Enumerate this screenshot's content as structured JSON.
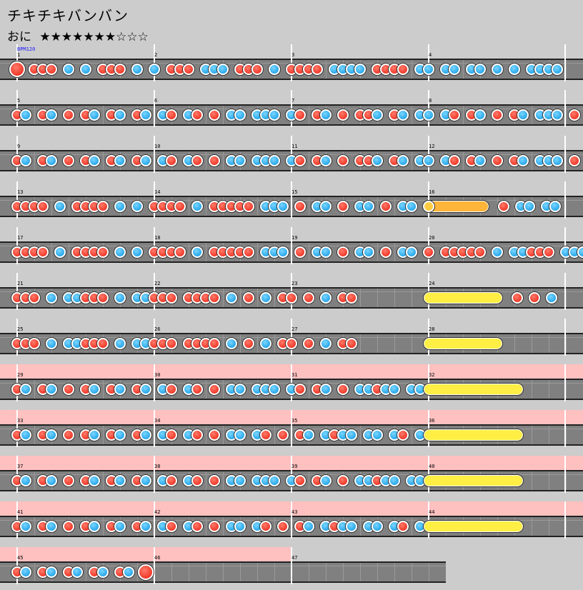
{
  "song": {
    "title": "チキチキバンバン",
    "difficulty_label": "おに",
    "stars_filled": 7,
    "stars_total": 10,
    "stars_text": "★★★★★★★☆☆☆",
    "bpm_label": "BPM120"
  },
  "colors": {
    "background": "#cccccc",
    "lane": "#808080",
    "gogo_band": "#ffc0c0",
    "don": "#f03a2a",
    "ka": "#2aa8ea",
    "roll_yellow": "#ffee44",
    "roll_orange": "#ffb43a"
  },
  "rows": [
    {
      "gogo": false,
      "measures": [
        "1",
        "2",
        "3",
        "4"
      ],
      "notes": "D.ddd.k.k.ddd.k.k.ddd.kkk.ddd.k.dddd.kkkk.dddd.kk.kk.kk.k.k.kkkk"
    },
    {
      "gogo": false,
      "measures": [
        "5",
        "6",
        "7",
        "8"
      ],
      "notes": "dk.dk.d.dk.dk.dk.kd.kd.d.kk.kkk.kd.dk.d.ddk.dk.kk.kd.dk.d.dk.kkk.d.k"
    },
    {
      "gogo": false,
      "measures": [
        "9",
        "10",
        "11",
        "12"
      ],
      "notes": "dk.dk.d.dk.dk.dk.kd.kd.d.kk.kkk.kd.dk.d.ddk.dk.kk.kd.dk.d.dk.kkk.d.k"
    },
    {
      "gogo": false,
      "measures": [
        "13",
        "14",
        "15",
        "16"
      ],
      "notes": "dddd.k.dddd.k.k.dddd.k.ddddd.kkk.d.kk.d.kk.d.kk.k.kkk",
      "roll": {
        "kind": "orange",
        "measure": 3,
        "start": 0.0,
        "end": 0.4
      },
      "after": "d.kk.kk"
    },
    {
      "gogo": false,
      "measures": [
        "17",
        "18",
        "19",
        "20"
      ],
      "notes": "dddd.k.dddd.k.k.dddd.k.ddddd.kkk.d.kk.d.kk.d.kk.d.ddddd.k.kkddd.kkk"
    },
    {
      "gogo": false,
      "measures": [
        "21",
        "22",
        "23",
        "24"
      ],
      "notes": "ddd.k.kkddd.k.kkddd.dddd.k.d.k.dd.d.k.dd",
      "roll": {
        "kind": "yellow",
        "measure": 3,
        "start": 0.0,
        "end": 0.5
      },
      "after": "d.d.k"
    },
    {
      "gogo": false,
      "measures": [
        "25",
        "26",
        "27",
        "28"
      ],
      "notes": "ddd.k.kkddd.k.kkddd.dddd.k.d.k.dd.d.k.dd",
      "roll": {
        "kind": "yellow",
        "measure": 3,
        "start": 0.0,
        "end": 0.5
      },
      "after": ""
    },
    {
      "gogo": true,
      "measures": [
        "29",
        "30",
        "31",
        "32"
      ],
      "notes": "dk.dk.d.dk.dk.dk.kd.kd.d.kk.kkk.kd.dk.d.kkdkk.kk.kd.kkd.dk",
      "roll": {
        "kind": "yellow",
        "measure": 3,
        "start": 0.0,
        "end": 0.65
      },
      "after": ""
    },
    {
      "gogo": true,
      "measures": [
        "33",
        "34",
        "35",
        "36"
      ],
      "notes": "dk.dk.d.dk.dk.dk.kd.kd.d.kk.kd.d.dk.kdkk.kk.kd.kd.dk",
      "roll": {
        "kind": "yellow",
        "measure": 3,
        "start": 0.0,
        "end": 0.65
      },
      "after": ""
    },
    {
      "gogo": true,
      "measures": [
        "37",
        "38",
        "39",
        "40"
      ],
      "notes": "dk.dk.d.dk.dk.dk.kd.kd.d.kk.kkk.kd.dk.d.kkdkk.kk.kd.kkd.dk",
      "roll": {
        "kind": "yellow",
        "measure": 3,
        "start": 0.0,
        "end": 0.65
      },
      "after": ""
    },
    {
      "gogo": true,
      "measures": [
        "41",
        "42",
        "43",
        "44"
      ],
      "notes": "dk.dk.d.dk.dk.dk.kd.kd.d.kk.kd.d.dk.kdkk.kk.kd.kd.dk",
      "roll": {
        "kind": "yellow",
        "measure": 3,
        "start": 0.0,
        "end": 0.65
      },
      "after": ""
    },
    {
      "gogo": true,
      "measures": [
        "45",
        "46",
        "47"
      ],
      "short": true,
      "notes": "dk.dk.dk.dk.dk.D"
    }
  ]
}
